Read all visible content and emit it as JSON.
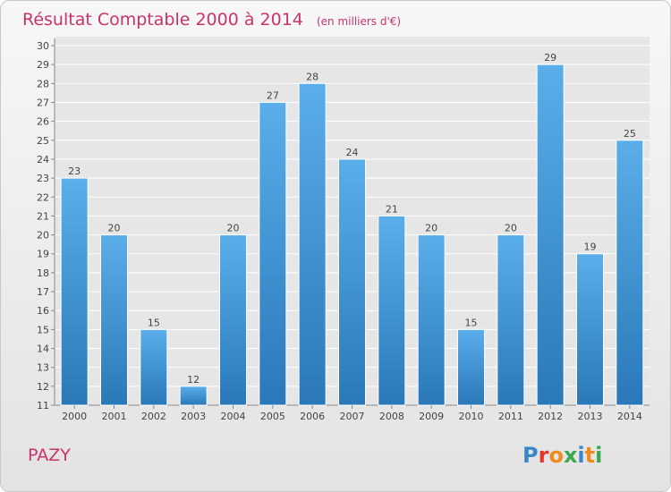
{
  "chart_data": {
    "type": "bar",
    "title": "Résultat Comptable 2000 à 2014",
    "subtitle": "(en milliers d'€)",
    "categories": [
      "2000",
      "2001",
      "2002",
      "2003",
      "2004",
      "2005",
      "2006",
      "2007",
      "2008",
      "2009",
      "2010",
      "2011",
      "2012",
      "2013",
      "2014"
    ],
    "values": [
      23,
      20,
      15,
      12,
      20,
      27,
      28,
      24,
      21,
      20,
      15,
      20,
      29,
      19,
      25
    ],
    "ylim": [
      11,
      30
    ],
    "yticks": [
      "11",
      "12",
      "13",
      "14",
      "15",
      "16",
      "17",
      "18",
      "19",
      "20",
      "21",
      "22",
      "23",
      "24",
      "25",
      "26",
      "27",
      "28",
      "29",
      "30"
    ],
    "xlabel": "",
    "ylabel": "",
    "grid": true
  },
  "commune_name": "PAZY",
  "logo": {
    "text": "Proxiti",
    "letters": [
      "P",
      "r",
      "o",
      "x",
      "i",
      "t",
      "i"
    ],
    "colors": [
      "#3a86c8",
      "#e3342f",
      "#f08a1c",
      "#3aa84c",
      "#3a86c8",
      "#f08a1c",
      "#3aa84c"
    ]
  },
  "colors": {
    "title": "#c8336b",
    "bar_top": "#5aaeea",
    "bar_bottom": "#2a78b8",
    "grid": "#ffffff"
  }
}
